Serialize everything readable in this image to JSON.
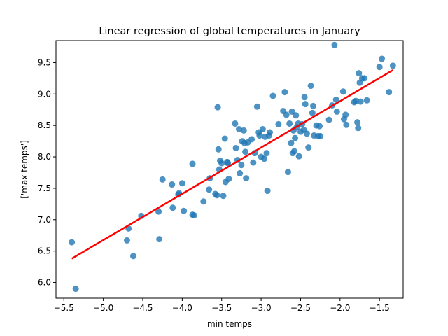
{
  "chart_data": {
    "type": "scatter",
    "title": "Linear regression of global temperatures in January",
    "xlabel": "min temps",
    "ylabel": "['max temps']",
    "xlim": [
      -5.6,
      -1.2
    ],
    "ylim": [
      5.75,
      9.85
    ],
    "xticks": [
      -5.5,
      -5.0,
      -4.5,
      -4.0,
      -3.5,
      -3.0,
      -2.5,
      -2.0,
      -1.5
    ],
    "xtick_labels": [
      "−5.5",
      "−5.0",
      "−4.5",
      "−4.0",
      "−3.5",
      "−3.0",
      "−2.5",
      "−2.0",
      "−1.5"
    ],
    "yticks": [
      6.0,
      6.5,
      7.0,
      7.5,
      8.0,
      8.5,
      9.0,
      9.5
    ],
    "ytick_labels": [
      "6.0",
      "6.5",
      "7.0",
      "7.5",
      "8.0",
      "8.5",
      "9.0",
      "9.5"
    ],
    "grid": false,
    "legend": "none",
    "colors": {
      "points": "#1f77b4",
      "regression_line": "#ff0000"
    },
    "series": [
      {
        "kind": "points",
        "points": [
          [
            -5.4,
            6.64
          ],
          [
            -5.35,
            5.9
          ],
          [
            -4.7,
            6.67
          ],
          [
            -4.68,
            6.86
          ],
          [
            -4.62,
            6.42
          ],
          [
            -4.52,
            7.06
          ],
          [
            -4.29,
            6.69
          ],
          [
            -4.3,
            7.13
          ],
          [
            -4.25,
            7.64
          ],
          [
            -4.13,
            7.56
          ],
          [
            -4.12,
            7.19
          ],
          [
            -4.05,
            7.4
          ],
          [
            -4.04,
            7.42
          ],
          [
            -4.0,
            7.58
          ],
          [
            -3.98,
            7.14
          ],
          [
            -3.87,
            7.89
          ],
          [
            -3.87,
            7.08
          ],
          [
            -3.85,
            7.07
          ],
          [
            -3.73,
            7.29
          ],
          [
            -3.66,
            7.48
          ],
          [
            -3.65,
            7.66
          ],
          [
            -3.58,
            7.41
          ],
          [
            -3.56,
            7.39
          ],
          [
            -3.55,
            8.79
          ],
          [
            -3.54,
            8.12
          ],
          [
            -3.53,
            7.8
          ],
          [
            -3.52,
            7.94
          ],
          [
            -3.5,
            7.9
          ],
          [
            -3.48,
            7.38
          ],
          [
            -3.46,
            8.29
          ],
          [
            -3.45,
            7.6
          ],
          [
            -3.43,
            7.92
          ],
          [
            -3.42,
            7.9
          ],
          [
            -3.41,
            7.65
          ],
          [
            -3.33,
            8.53
          ],
          [
            -3.32,
            8.14
          ],
          [
            -3.3,
            7.95
          ],
          [
            -3.28,
            8.44
          ],
          [
            -3.27,
            7.74
          ],
          [
            -3.25,
            7.87
          ],
          [
            -3.24,
            8.25
          ],
          [
            -3.22,
            8.42
          ],
          [
            -3.21,
            8.22
          ],
          [
            -3.2,
            8.08
          ],
          [
            -3.19,
            7.66
          ],
          [
            -3.17,
            8.23
          ],
          [
            -3.12,
            8.28
          ],
          [
            -3.1,
            7.91
          ],
          [
            -3.08,
            8.06
          ],
          [
            -3.05,
            8.8
          ],
          [
            -3.03,
            8.39
          ],
          [
            -3.02,
            8.34
          ],
          [
            -3.0,
            8.0
          ],
          [
            -2.98,
            8.44
          ],
          [
            -2.96,
            7.97
          ],
          [
            -2.95,
            8.32
          ],
          [
            -2.93,
            8.06
          ],
          [
            -2.92,
            7.46
          ],
          [
            -2.9,
            8.34
          ],
          [
            -2.89,
            8.39
          ],
          [
            -2.85,
            8.97
          ],
          [
            -2.78,
            8.52
          ],
          [
            -2.72,
            8.73
          ],
          [
            -2.7,
            9.03
          ],
          [
            -2.68,
            8.67
          ],
          [
            -2.66,
            7.76
          ],
          [
            -2.64,
            8.53
          ],
          [
            -2.62,
            8.22
          ],
          [
            -2.61,
            8.72
          ],
          [
            -2.6,
            8.06
          ],
          [
            -2.59,
            8.42
          ],
          [
            -2.58,
            8.09
          ],
          [
            -2.57,
            8.3
          ],
          [
            -2.56,
            8.66
          ],
          [
            -2.55,
            8.47
          ],
          [
            -2.53,
            8.53
          ],
          [
            -2.52,
            8.01
          ],
          [
            -2.5,
            8.4
          ],
          [
            -2.48,
            8.52
          ],
          [
            -2.46,
            8.43
          ],
          [
            -2.45,
            8.95
          ],
          [
            -2.44,
            8.84
          ],
          [
            -2.42,
            8.37
          ],
          [
            -2.4,
            8.15
          ],
          [
            -2.37,
            9.13
          ],
          [
            -2.35,
            8.7
          ],
          [
            -2.34,
            8.81
          ],
          [
            -2.33,
            8.34
          ],
          [
            -2.3,
            8.5
          ],
          [
            -2.28,
            8.33
          ],
          [
            -2.26,
            8.49
          ],
          [
            -2.25,
            8.33
          ],
          [
            -2.14,
            8.59
          ],
          [
            -2.1,
            8.82
          ],
          [
            -2.07,
            9.78
          ],
          [
            -2.05,
            8.91
          ],
          [
            -2.04,
            8.72
          ],
          [
            -1.96,
            9.04
          ],
          [
            -1.95,
            8.6
          ],
          [
            -1.93,
            8.67
          ],
          [
            -1.92,
            8.51
          ],
          [
            -1.82,
            8.87
          ],
          [
            -1.8,
            8.89
          ],
          [
            -1.78,
            8.55
          ],
          [
            -1.77,
            8.46
          ],
          [
            -1.76,
            9.33
          ],
          [
            -1.75,
            9.18
          ],
          [
            -1.74,
            8.88
          ],
          [
            -1.72,
            9.25
          ],
          [
            -1.69,
            9.25
          ],
          [
            -1.66,
            8.9
          ],
          [
            -1.5,
            9.43
          ],
          [
            -1.47,
            9.56
          ],
          [
            -1.38,
            9.03
          ],
          [
            -1.33,
            9.45
          ]
        ]
      },
      {
        "kind": "regression_line",
        "points": [
          [
            -5.4,
            6.38
          ],
          [
            -1.33,
            9.38
          ]
        ]
      }
    ]
  }
}
